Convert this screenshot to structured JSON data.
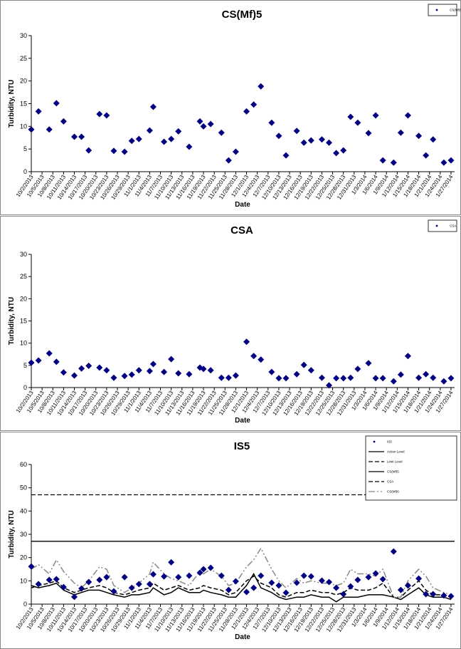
{
  "chart_data": [
    {
      "type": "scatter",
      "title": "CS(Mf)5",
      "x_label": "Date",
      "y_label": "Turbidity, NTU",
      "xlim": [
        "10/2/2013",
        "1/28/2014"
      ],
      "xticks": [
        "10/2/2013",
        "10/5/2013",
        "10/8/2013",
        "10/11/2013",
        "10/14/2013",
        "10/17/2013",
        "10/20/2013",
        "10/23/2013",
        "10/26/2013",
        "10/29/2013",
        "11/1/2013",
        "11/4/2013",
        "11/7/2013",
        "11/10/2013",
        "11/13/2013",
        "11/16/2013",
        "11/19/2013",
        "11/22/2013",
        "11/25/2013",
        "11/28/2013",
        "12/1/2013",
        "12/4/2013",
        "12/7/2013",
        "12/10/2013",
        "12/13/2013",
        "12/16/2013",
        "12/19/2013",
        "12/22/2013",
        "12/25/2013",
        "12/28/2013",
        "12/31/2013",
        "1/3/2014",
        "1/6/2014",
        "1/9/2014",
        "1/12/2014",
        "1/15/2014",
        "1/18/2014",
        "1/21/2014",
        "1/24/2014",
        "1/27/2014"
      ],
      "ylim": [
        0,
        30
      ],
      "yticks": [
        0,
        5,
        10,
        15,
        20,
        25,
        30
      ],
      "legend": "top-right",
      "x": [
        "10/2/2013",
        "10/4/2013",
        "10/7/2013",
        "10/9/2013",
        "10/11/2013",
        "10/14/2013",
        "10/16/2013",
        "10/18/2013",
        "10/21/2013",
        "10/23/2013",
        "10/25/2013",
        "10/28/2013",
        "10/30/2013",
        "11/1/2013",
        "11/4/2013",
        "11/5/2013",
        "11/8/2013",
        "11/10/2013",
        "11/12/2013",
        "11/15/2013",
        "11/18/2013",
        "11/19/2013",
        "11/21/2013",
        "11/24/2013",
        "11/26/2013",
        "11/28/2013",
        "12/1/2013",
        "12/3/2013",
        "12/5/2013",
        "12/8/2013",
        "12/10/2013",
        "12/12/2013",
        "12/15/2013",
        "12/17/2013",
        "12/19/2013",
        "12/22/2013",
        "12/24/2013",
        "12/26/2013",
        "12/28/2013",
        "12/30/2013",
        "1/1/2014",
        "1/4/2014",
        "1/6/2014",
        "1/8/2014",
        "1/11/2014",
        "1/13/2014",
        "1/15/2014",
        "1/18/2014",
        "1/20/2014",
        "1/22/2014",
        "1/25/2014",
        "1/27/2014"
      ],
      "series": [
        {
          "name": "CS(Mf)5",
          "color": "#000080",
          "marker": "diamond",
          "values": [
            9.3,
            13.3,
            9.3,
            15.1,
            11.1,
            7.7,
            7.7,
            4.7,
            12.7,
            12.4,
            4.6,
            4.4,
            6.8,
            7.2,
            9.1,
            14.3,
            6.6,
            7.2,
            8.9,
            5.5,
            11.1,
            10,
            10.5,
            8.6,
            2.5,
            4.4,
            13.3,
            14.8,
            18.8,
            10.8,
            7.9,
            3.6,
            9,
            6.4,
            6.9,
            7.1,
            6.4,
            4.1,
            4.7,
            12.1,
            10.8,
            8.5,
            12.4,
            2.5,
            2,
            8.6,
            12.4,
            7.9,
            3.6,
            7.1,
            2,
            2.5
          ]
        }
      ]
    },
    {
      "type": "scatter",
      "title": "CSA",
      "x_label": "Date",
      "y_label": "Turbidity, NTU",
      "xlim": [
        "10/2/2013",
        "1/28/2014"
      ],
      "xticks": [
        "10/2/2013",
        "10/5/2013",
        "10/8/2013",
        "10/11/2013",
        "10/14/2013",
        "10/17/2013",
        "10/20/2013",
        "10/23/2013",
        "10/26/2013",
        "10/29/2013",
        "11/1/2013",
        "11/4/2013",
        "11/7/2013",
        "11/10/2013",
        "11/13/2013",
        "11/16/2013",
        "11/19/2013",
        "11/22/2013",
        "11/25/2013",
        "11/28/2013",
        "12/1/2013",
        "12/4/2013",
        "12/7/2013",
        "12/10/2013",
        "12/13/2013",
        "12/16/2013",
        "12/19/2013",
        "12/22/2013",
        "12/25/2013",
        "12/28/2013",
        "12/31/2013",
        "1/3/2014",
        "1/6/2014",
        "1/9/2014",
        "1/12/2014",
        "1/15/2014",
        "1/18/2014",
        "1/21/2014",
        "1/24/2014",
        "1/27/2014"
      ],
      "ylim": [
        0,
        30
      ],
      "yticks": [
        0,
        5,
        10,
        15,
        20,
        25,
        30
      ],
      "legend": "top-right",
      "x": [
        "10/2/2013",
        "10/4/2013",
        "10/7/2013",
        "10/9/2013",
        "10/11/2013",
        "10/14/2013",
        "10/16/2013",
        "10/18/2013",
        "10/21/2013",
        "10/23/2013",
        "10/25/2013",
        "10/28/2013",
        "10/30/2013",
        "11/1/2013",
        "11/4/2013",
        "11/5/2013",
        "11/8/2013",
        "11/10/2013",
        "11/12/2013",
        "11/15/2013",
        "11/18/2013",
        "11/19/2013",
        "11/21/2013",
        "11/24/2013",
        "11/26/2013",
        "11/28/2013",
        "12/1/2013",
        "12/3/2013",
        "12/5/2013",
        "12/8/2013",
        "12/10/2013",
        "12/12/2013",
        "12/15/2013",
        "12/17/2013",
        "12/19/2013",
        "12/22/2013",
        "12/24/2013",
        "12/26/2013",
        "12/28/2013",
        "12/30/2013",
        "1/1/2014",
        "1/4/2014",
        "1/6/2014",
        "1/8/2014",
        "1/11/2014",
        "1/13/2014",
        "1/15/2014",
        "1/18/2014",
        "1/20/2014",
        "1/22/2014",
        "1/25/2014",
        "1/27/2014"
      ],
      "series": [
        {
          "name": "CSA",
          "color": "#000080",
          "marker": "diamond",
          "values": [
            5.6,
            6.1,
            7.7,
            5.8,
            3.4,
            2.7,
            4.3,
            4.9,
            4.5,
            3.9,
            2.2,
            2.6,
            2.9,
            3.9,
            3.7,
            5.3,
            3.5,
            6.4,
            3.2,
            3.0,
            4.5,
            4.2,
            3.9,
            2.2,
            2.2,
            2.7,
            10.3,
            7.1,
            6.3,
            3.5,
            2.1,
            2.1,
            3.0,
            5.1,
            3.9,
            2.2,
            0.5,
            2.1,
            2.1,
            2.2,
            4.2,
            5.5,
            2.1,
            2.1,
            1.4,
            2.9,
            7.1,
            2.2,
            3.0,
            2.2,
            1.4,
            2.1
          ]
        }
      ]
    },
    {
      "type": "scatter",
      "title": "IS5",
      "x_label": "Date",
      "y_label": "Turbidity, NTU",
      "xlim": [
        "10/2/2013",
        "1/28/2014"
      ],
      "xticks": [
        "10/2/2013",
        "10/5/2013",
        "10/8/2013",
        "10/11/2013",
        "10/14/2013",
        "10/17/2013",
        "10/20/2013",
        "10/23/2013",
        "10/26/2013",
        "10/29/2013",
        "11/1/2013",
        "11/4/2013",
        "11/7/2013",
        "11/10/2013",
        "11/13/2013",
        "11/16/2013",
        "11/19/2013",
        "11/22/2013",
        "11/25/2013",
        "11/28/2013",
        "12/1/2013",
        "12/4/2013",
        "12/7/2013",
        "12/10/2013",
        "12/13/2013",
        "12/16/2013",
        "12/19/2013",
        "12/22/2013",
        "12/25/2013",
        "12/28/2013",
        "12/31/2013",
        "1/3/2014",
        "1/6/2014",
        "1/9/2014",
        "1/12/2014",
        "1/15/2014",
        "1/18/2014",
        "1/21/2014",
        "1/24/2014",
        "1/27/2014"
      ],
      "ylim": [
        0,
        60
      ],
      "yticks": [
        0,
        10,
        20,
        30,
        40,
        50,
        60
      ],
      "legend": "top-right",
      "x": [
        "10/2/2013",
        "10/4/2013",
        "10/7/2013",
        "10/9/2013",
        "10/11/2013",
        "10/14/2013",
        "10/16/2013",
        "10/18/2013",
        "10/21/2013",
        "10/23/2013",
        "10/25/2013",
        "10/28/2013",
        "10/30/2013",
        "11/1/2013",
        "11/4/2013",
        "11/5/2013",
        "11/8/2013",
        "11/10/2013",
        "11/12/2013",
        "11/15/2013",
        "11/18/2013",
        "11/19/2013",
        "11/21/2013",
        "11/24/2013",
        "11/26/2013",
        "11/28/2013",
        "12/1/2013",
        "12/3/2013",
        "12/5/2013",
        "12/8/2013",
        "12/10/2013",
        "12/12/2013",
        "12/15/2013",
        "12/17/2013",
        "12/19/2013",
        "12/22/2013",
        "12/24/2013",
        "12/26/2013",
        "12/28/2013",
        "12/30/2013",
        "1/1/2014",
        "1/4/2014",
        "1/6/2014",
        "1/8/2014",
        "1/11/2014",
        "1/13/2014",
        "1/15/2014",
        "1/18/2014",
        "1/20/2014",
        "1/22/2014",
        "1/25/2014",
        "1/27/2014"
      ],
      "hlines": [
        {
          "name": "Action Level",
          "value": 27,
          "style": "solid",
          "color": "#000000"
        },
        {
          "name": "Limit Level",
          "value": 47,
          "style": "dashed",
          "color": "#000000"
        }
      ],
      "series": [
        {
          "name": "IS5",
          "color": "#000080",
          "marker": "diamond",
          "values": [
            16.2,
            8.6,
            10.4,
            10.7,
            7.3,
            3.1,
            6.7,
            9.5,
            10.4,
            11.6,
            5.5,
            11.6,
            7.0,
            8.6,
            8.6,
            12.8,
            11.9,
            18.0,
            11.6,
            12.2,
            13.5,
            15.0,
            15.6,
            12.2,
            6.1,
            9.8,
            5.2,
            7.0,
            12.2,
            9.2,
            8.0,
            4.9,
            9.2,
            12.2,
            11.9,
            10.1,
            9.5,
            7.0,
            4.3,
            7.6,
            10.4,
            11.6,
            13.2,
            10.7,
            22.6,
            6.1,
            8.0,
            11.0,
            4.3,
            4.3,
            3.7,
            3.4
          ]
        },
        {
          "name": "CS(Mf)5",
          "color": "#000000",
          "style": "solid",
          "values": [
            8,
            7,
            8,
            9,
            6,
            4,
            5,
            6,
            6,
            5,
            4,
            3,
            4,
            4,
            5,
            7,
            4,
            5,
            7,
            5,
            5,
            6,
            5,
            4,
            3,
            3,
            8,
            13,
            7,
            5,
            3,
            2,
            3,
            3,
            4,
            3,
            3,
            1,
            3,
            3,
            3,
            4,
            4,
            4,
            3,
            2,
            4,
            7,
            4,
            3,
            3,
            2
          ]
        },
        {
          "name": "CSA",
          "color": "#000000",
          "style": "dashed",
          "values": [
            7,
            8,
            9,
            10,
            7,
            5,
            6,
            7,
            8,
            7,
            5,
            4,
            5,
            6,
            7,
            9,
            6,
            7,
            8,
            6,
            7,
            8,
            7,
            6,
            4,
            5,
            10,
            12,
            9,
            7,
            4,
            3,
            5,
            5,
            6,
            5,
            5,
            4,
            5,
            7,
            6,
            6,
            7,
            9,
            3,
            3,
            6,
            10,
            6,
            4,
            4,
            3
          ]
        },
        {
          "name": "CS(Mf)6",
          "color": "#888888",
          "style": "dashdot",
          "values": [
            15,
            17,
            13,
            19,
            14,
            9,
            7,
            10,
            16,
            15,
            8,
            5,
            7,
            9,
            13,
            18,
            13,
            11,
            10,
            8,
            14,
            13,
            15,
            12,
            8,
            9,
            16,
            19,
            24,
            15,
            10,
            7,
            11,
            9,
            10,
            9,
            9,
            8,
            9,
            15,
            13,
            13,
            12,
            15,
            3,
            3,
            10,
            15,
            12,
            7,
            5,
            4
          ]
        }
      ]
    }
  ]
}
